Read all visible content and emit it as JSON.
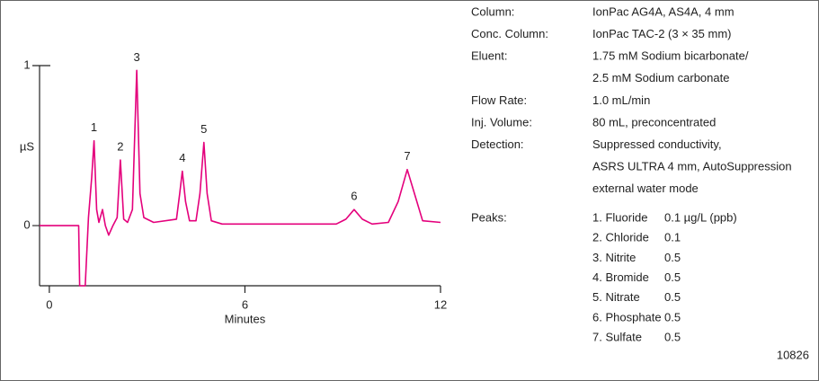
{
  "chart_data": {
    "type": "line",
    "y_label": "µS",
    "x_label": "Minutes",
    "xlim": [
      -0.3,
      12
    ],
    "ylim": [
      -0.376,
      1
    ],
    "xticks": [
      0,
      6,
      12
    ],
    "yticks": [
      0,
      1
    ],
    "color": "#e4007c",
    "x": [
      -0.3,
      0.9,
      0.93,
      1.1,
      1.2,
      1.3,
      1.37,
      1.45,
      1.52,
      1.63,
      1.72,
      1.82,
      1.95,
      2.08,
      2.18,
      2.28,
      2.4,
      2.55,
      2.68,
      2.78,
      2.9,
      3.2,
      3.9,
      4.0,
      4.08,
      4.18,
      4.3,
      4.5,
      4.62,
      4.74,
      4.84,
      4.97,
      5.3,
      7,
      8.8,
      9.1,
      9.35,
      9.6,
      9.9,
      10.4,
      10.7,
      10.98,
      11.2,
      11.45,
      12
    ],
    "values": [
      0,
      0,
      -0.376,
      -0.376,
      0.05,
      0.3,
      0.53,
      0.1,
      0.02,
      0.1,
      0.0,
      -0.06,
      0.0,
      0.05,
      0.41,
      0.04,
      0.02,
      0.1,
      0.97,
      0.2,
      0.05,
      0.02,
      0.04,
      0.2,
      0.34,
      0.15,
      0.03,
      0.03,
      0.2,
      0.52,
      0.2,
      0.03,
      0.01,
      0.01,
      0.01,
      0.04,
      0.1,
      0.04,
      0.01,
      0.02,
      0.15,
      0.35,
      0.2,
      0.03,
      0.02
    ],
    "annotations": [
      {
        "text": "1",
        "x": 1.37,
        "y": 0.53
      },
      {
        "text": "2",
        "x": 2.18,
        "y": 0.41
      },
      {
        "text": "3",
        "x": 2.68,
        "y": 0.97
      },
      {
        "text": "4",
        "x": 4.08,
        "y": 0.34
      },
      {
        "text": "5",
        "x": 4.74,
        "y": 0.52
      },
      {
        "text": "6",
        "x": 9.35,
        "y": 0.1
      },
      {
        "text": "7",
        "x": 10.98,
        "y": 0.35
      }
    ]
  },
  "conditions": [
    {
      "label": "Column:",
      "lines": [
        "IonPac AG4A, AS4A, 4 mm"
      ]
    },
    {
      "label": "Conc. Column:",
      "lines": [
        "IonPac TAC-2 (3 × 35 mm)"
      ]
    },
    {
      "label": "Eluent:",
      "lines": [
        "1.75 mM Sodium bicarbonate/",
        "2.5 mM Sodium carbonate"
      ]
    },
    {
      "label": "Flow Rate:",
      "lines": [
        "1.0 mL/min"
      ]
    },
    {
      "label": "Inj. Volume:",
      "lines": [
        "80 mL, preconcentrated"
      ]
    },
    {
      "label": "Detection:",
      "lines": [
        "Suppressed conductivity,",
        "ASRS ULTRA 4 mm, AutoSuppression",
        "external water mode"
      ]
    }
  ],
  "peaks": {
    "label": "Peaks:",
    "rows": [
      [
        "1. Fluoride",
        "0.1 µg/L (ppb)"
      ],
      [
        "2. Chloride",
        "0.1"
      ],
      [
        "3. Nitrite",
        "0.5"
      ],
      [
        "4. Bromide",
        "0.5"
      ],
      [
        "5. Nitrate",
        "0.5"
      ],
      [
        "6. Phosphate",
        "0.5"
      ],
      [
        "7. Sulfate",
        "0.5"
      ]
    ]
  },
  "figure_id": "10826"
}
